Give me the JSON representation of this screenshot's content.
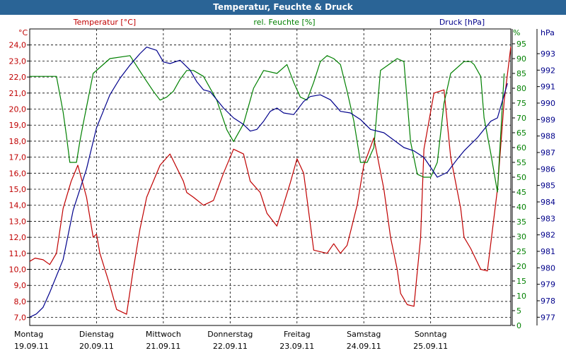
{
  "window": {
    "title": "Temperatur, Feuchte & Druck"
  },
  "chart_data": {
    "type": "line",
    "title": "Temperatur, Feuchte & Druck",
    "grid": true,
    "x_categories": [
      {
        "day": "Montag",
        "date": "19.09.11"
      },
      {
        "day": "Dienstag",
        "date": "20.09.11"
      },
      {
        "day": "Mittwoch",
        "date": "21.09.11"
      },
      {
        "day": "Donnerstag",
        "date": "22.09.11"
      },
      {
        "day": "Freitag",
        "date": "23.09.11"
      },
      {
        "day": "Samstag",
        "date": "24.09.11"
      },
      {
        "day": "Sonntag",
        "date": "25.09.11"
      }
    ],
    "x_range_days": [
      0,
      7.2
    ],
    "axes": {
      "temperature": {
        "unit": "°C",
        "label": "Temperatur [°C]",
        "color": "#c00000",
        "ylim": [
          6.5,
          25.0
        ],
        "ticks": [
          "7,0",
          "8,0",
          "9,0",
          "10,0",
          "11,0",
          "12,0",
          "13,0",
          "14,0",
          "15,0",
          "16,0",
          "17,0",
          "18,0",
          "19,0",
          "20,0",
          "21,0",
          "22,0",
          "23,0",
          "24,0"
        ]
      },
      "humidity": {
        "unit": "%",
        "label": "rel. Feuchte [%]",
        "color": "#008000",
        "ylim": [
          0,
          100
        ],
        "ticks": [
          "0",
          "5",
          "10",
          "15",
          "20",
          "25",
          "30",
          "35",
          "40",
          "45",
          "50",
          "55",
          "60",
          "65",
          "70",
          "75",
          "80",
          "85",
          "90",
          "95"
        ]
      },
      "pressure": {
        "unit": "hPa",
        "label": "Druck [hPa]",
        "color": "#00008b",
        "ylim": [
          976.5,
          994.5
        ],
        "ticks": [
          "977",
          "978",
          "979",
          "980",
          "981",
          "982",
          "983",
          "984",
          "985",
          "986",
          "987",
          "988",
          "989",
          "990",
          "991",
          "992",
          "993"
        ]
      }
    },
    "series": [
      {
        "name": "Temperatur [°C]",
        "axis": "temperature",
        "color": "#c00000",
        "x": [
          0,
          0.08,
          0.2,
          0.3,
          0.4,
          0.5,
          0.62,
          0.72,
          0.85,
          0.95,
          1.0,
          1.05,
          1.2,
          1.3,
          1.45,
          1.55,
          1.65,
          1.75,
          1.95,
          2.1,
          2.3,
          2.35,
          2.45,
          2.6,
          2.75,
          2.9,
          3.05,
          3.2,
          3.3,
          3.45,
          3.55,
          3.7,
          3.9,
          4.0,
          4.1,
          4.25,
          4.45,
          4.55,
          4.65,
          4.75,
          4.9,
          5.0,
          5.15,
          5.3,
          5.4,
          5.5,
          5.55,
          5.65,
          5.75,
          5.85,
          5.9,
          6.05,
          6.2,
          6.3,
          6.45,
          6.5,
          6.6,
          6.75,
          6.85,
          7.0,
          7.1,
          7.2
        ],
        "y": [
          10.5,
          10.7,
          10.6,
          10.3,
          11.0,
          13.8,
          15.5,
          16.5,
          14.5,
          12.0,
          12.2,
          11.0,
          9.0,
          7.5,
          7.2,
          10.0,
          12.5,
          14.5,
          16.5,
          17.2,
          15.5,
          14.8,
          14.5,
          14.0,
          14.3,
          16.0,
          17.5,
          17.2,
          15.5,
          14.8,
          13.5,
          12.7,
          15.4,
          16.9,
          16.0,
          11.2,
          11.0,
          11.6,
          11.0,
          11.5,
          14.0,
          16.5,
          18.2,
          15.0,
          12.0,
          10.0,
          8.5,
          7.8,
          7.7,
          12.0,
          17.5,
          21.0,
          21.2,
          17.0,
          13.8,
          12.0,
          11.3,
          10.0,
          9.9,
          15.0,
          20.5,
          23.9
        ]
      },
      {
        "name": "rel. Feuchte [%]",
        "axis": "humidity",
        "color": "#008000",
        "x": [
          0,
          0.1,
          0.3,
          0.4,
          0.5,
          0.55,
          0.6,
          0.65,
          0.7,
          0.75,
          0.8,
          0.95,
          1.2,
          1.5,
          1.7,
          1.85,
          1.95,
          2.05,
          2.15,
          2.25,
          2.35,
          2.45,
          2.6,
          2.8,
          2.95,
          3.05,
          3.2,
          3.35,
          3.5,
          3.7,
          3.85,
          3.95,
          4.05,
          4.15,
          4.25,
          4.35,
          4.45,
          4.55,
          4.65,
          4.75,
          4.85,
          4.95,
          5.05,
          5.15,
          5.25,
          5.5,
          5.6,
          5.7,
          5.8,
          5.9,
          6.0,
          6.1,
          6.2,
          6.3,
          6.5,
          6.6,
          6.65,
          6.75,
          6.8,
          6.9,
          7.0,
          7.1
        ],
        "y": [
          84,
          84,
          84,
          84,
          72,
          64,
          55,
          55,
          55,
          62,
          68,
          85,
          90,
          91,
          84,
          79,
          76,
          77,
          79,
          83,
          86,
          86,
          84,
          76,
          66,
          62,
          68,
          80,
          86,
          85,
          88,
          82,
          77,
          76,
          82,
          89,
          91,
          90,
          88,
          79,
          69,
          55,
          55,
          60,
          86,
          90,
          89,
          62,
          51,
          50,
          50,
          55,
          75,
          85,
          89,
          89,
          88,
          84,
          70,
          58,
          45,
          85
        ]
      },
      {
        "name": "Druck [hPa]",
        "axis": "pressure",
        "color": "#00008b",
        "x": [
          0,
          0.1,
          0.2,
          0.3,
          0.5,
          0.65,
          0.85,
          1.0,
          1.1,
          1.2,
          1.35,
          1.5,
          1.65,
          1.75,
          1.9,
          2.0,
          2.1,
          2.25,
          2.4,
          2.5,
          2.6,
          2.7,
          2.8,
          2.9,
          3.05,
          3.2,
          3.3,
          3.4,
          3.5,
          3.6,
          3.7,
          3.8,
          3.95,
          4.1,
          4.2,
          4.35,
          4.5,
          4.65,
          4.8,
          4.95,
          5.1,
          5.3,
          5.4,
          5.5,
          5.6,
          5.75,
          5.9,
          6.0,
          6.1,
          6.25,
          6.4,
          6.5,
          6.6,
          6.7,
          6.8,
          6.9,
          7.0,
          7.15
        ],
        "y": [
          977.0,
          977.2,
          977.6,
          978.5,
          980.5,
          983.5,
          986.0,
          988.5,
          989.5,
          990.5,
          991.5,
          992.3,
          993.0,
          993.4,
          993.2,
          992.5,
          992.4,
          992.6,
          992.0,
          991.3,
          990.8,
          990.7,
          990.2,
          989.7,
          989.1,
          988.7,
          988.3,
          988.4,
          988.9,
          989.5,
          989.7,
          989.4,
          989.3,
          990.1,
          990.4,
          990.5,
          990.2,
          989.5,
          989.4,
          989.0,
          988.4,
          988.2,
          987.9,
          987.6,
          987.3,
          987.1,
          986.7,
          986.1,
          985.5,
          985.8,
          986.6,
          987.1,
          987.5,
          987.9,
          988.4,
          988.9,
          989.1,
          991.2
        ]
      }
    ]
  }
}
